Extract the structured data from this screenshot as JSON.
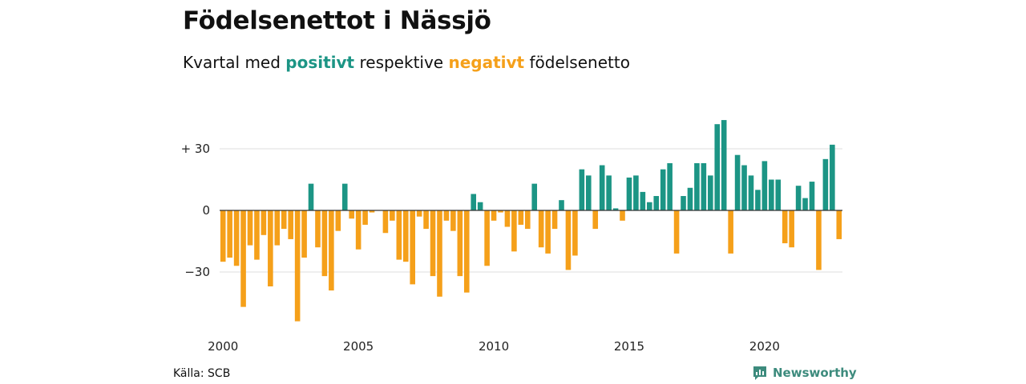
{
  "colors": {
    "positive": "#1c9585",
    "negative": "#f5a01a",
    "brand": "#3d8b7d",
    "grid": "#dddddd",
    "zero": "#333333"
  },
  "header": {
    "title": "Födelsenettot i Nässjö",
    "subtitle_pre": "Kvartal med ",
    "subtitle_pos": "positivt",
    "subtitle_mid": " respektive ",
    "subtitle_neg": "negativt",
    "subtitle_post": " födelsenetto"
  },
  "footer": {
    "source": "Källa: SCB",
    "brand": "Newsworthy",
    "brand_icon": "newsworthy-chart-bubble-icon"
  },
  "chart_data": {
    "type": "bar",
    "x_start_year": 2000,
    "x_step": "quarter",
    "values": [
      -25,
      -23,
      -27,
      -47,
      -17,
      -24,
      -12,
      -37,
      -17,
      -9,
      -14,
      -54,
      -23,
      13,
      -18,
      -32,
      -39,
      -10,
      13,
      -4,
      -19,
      -7,
      -1,
      0,
      -11,
      -5,
      -24,
      -25,
      -36,
      -3,
      -9,
      -32,
      -42,
      -5,
      -10,
      -32,
      -40,
      8,
      4,
      -27,
      -5,
      -1,
      -8,
      -20,
      -7,
      -9,
      13,
      -18,
      -21,
      -9,
      5,
      -29,
      -22,
      20,
      17,
      -9,
      22,
      17,
      1,
      -5,
      16,
      17,
      9,
      4,
      7,
      20,
      23,
      -21,
      7,
      11,
      23,
      23,
      17,
      42,
      44,
      -21,
      27,
      22,
      17,
      10,
      24,
      15,
      15,
      -16,
      -18,
      12,
      6,
      14,
      -29,
      25,
      32,
      -14
    ],
    "y_ticks": [
      {
        "value": 30,
        "label": "+ 30"
      },
      {
        "value": 0,
        "label": "0"
      },
      {
        "value": -30,
        "label": "−30"
      }
    ],
    "x_ticks": [
      "2000",
      "2005",
      "2010",
      "2015",
      "2020"
    ],
    "ylim": [
      -55,
      47
    ],
    "grid": true,
    "legend": "none (colors explained in subtitle)"
  }
}
